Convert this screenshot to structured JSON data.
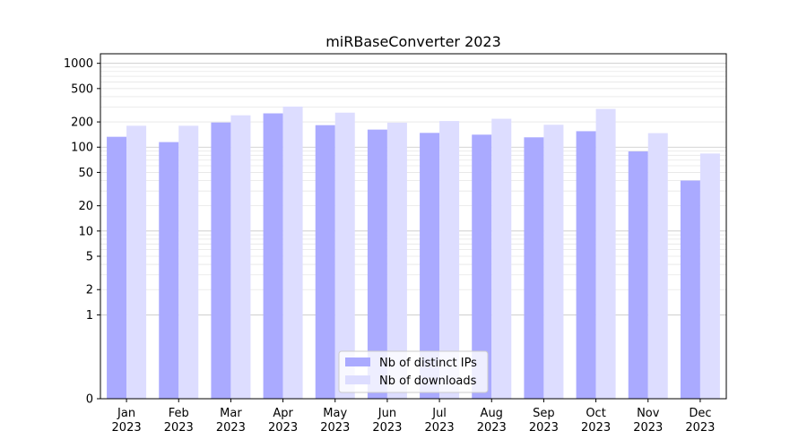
{
  "chart_data": {
    "type": "bar",
    "title": "miRBaseConverter 2023",
    "xlabel": "",
    "ylabel": "",
    "scale": "symlog",
    "ylim": [
      0,
      1300
    ],
    "yticks": [
      0,
      1,
      2,
      5,
      10,
      20,
      50,
      100,
      200,
      500,
      1000
    ],
    "ytick_labels": [
      "0",
      "1",
      "2",
      "5",
      "10",
      "20",
      "50",
      "100",
      "200",
      "500",
      "1000"
    ],
    "categories": [
      "Jan\n2023",
      "Feb\n2023",
      "Mar\n2023",
      "Apr\n2023",
      "May\n2023",
      "Jun\n2023",
      "Jul\n2023",
      "Aug\n2023",
      "Sep\n2023",
      "Oct\n2023",
      "Nov\n2023",
      "Dec\n2023"
    ],
    "series": [
      {
        "name": "Nb of distinct IPs",
        "color": "#aaaaff",
        "values": [
          133,
          115,
          197,
          253,
          183,
          162,
          148,
          141,
          131,
          155,
          89,
          40
        ]
      },
      {
        "name": "Nb of downloads",
        "color": "#ddddff",
        "values": [
          180,
          180,
          240,
          305,
          258,
          196,
          205,
          218,
          185,
          286,
          147,
          84
        ]
      }
    ],
    "grid": "y",
    "legend_position": "lower center"
  }
}
